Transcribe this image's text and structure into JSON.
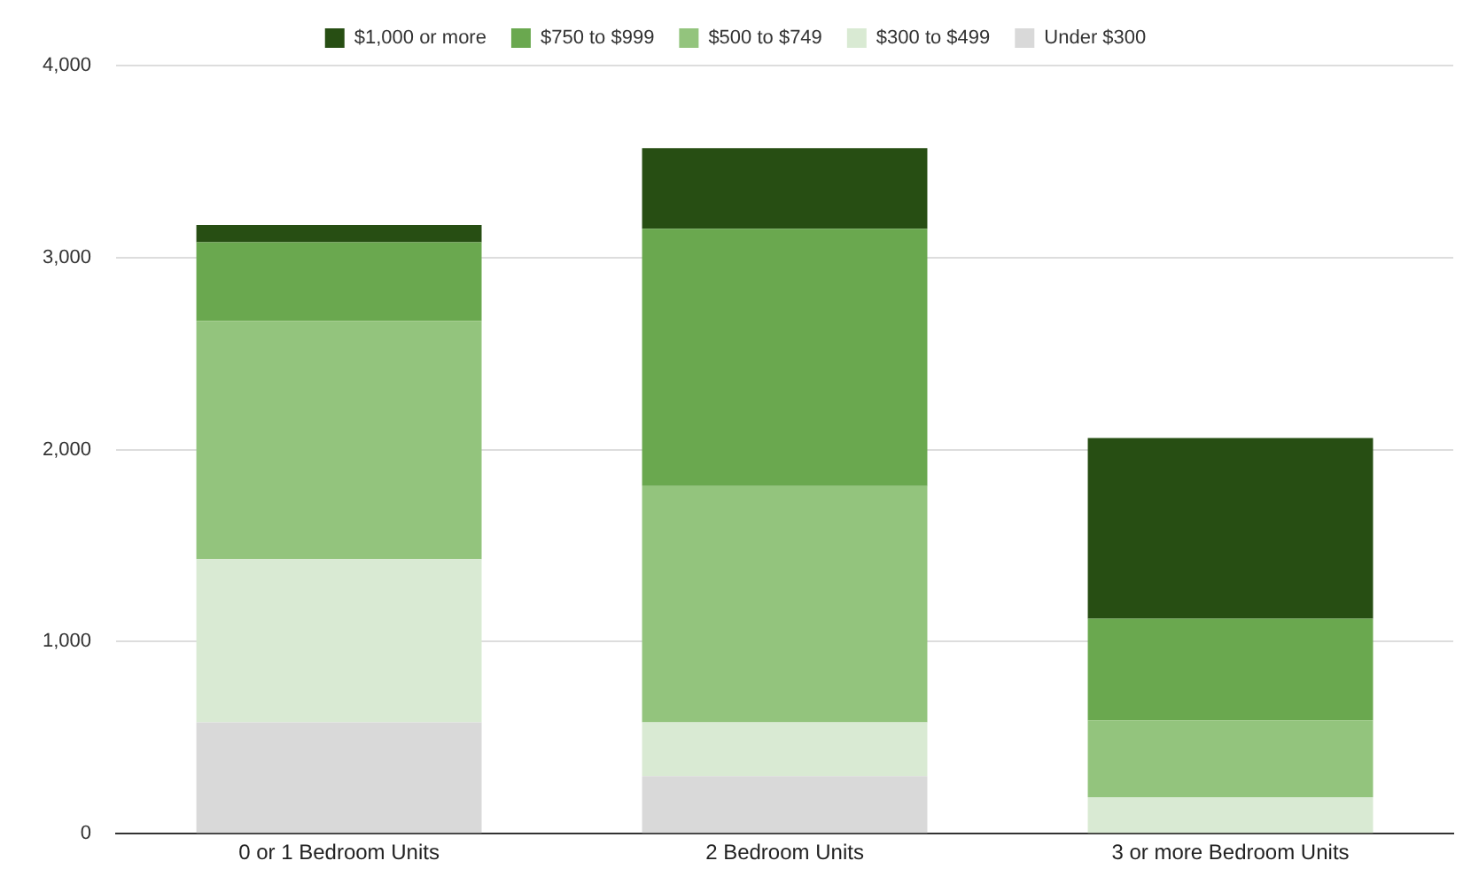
{
  "chart_data": {
    "type": "bar",
    "stacked": true,
    "categories": [
      "0 or 1 Bedroom Units",
      "2 Bedroom Units",
      "3 or more Bedroom Units"
    ],
    "series": [
      {
        "name": "Under $300",
        "color": "#d9d9d9",
        "values": [
          580,
          300,
          0
        ]
      },
      {
        "name": "$300 to $499",
        "color": "#d9ead3",
        "values": [
          850,
          280,
          190
        ]
      },
      {
        "name": "$500 to $749",
        "color": "#93c47d",
        "values": [
          1240,
          1230,
          400
        ]
      },
      {
        "name": "$750 to $999",
        "color": "#6aa84f",
        "values": [
          410,
          1340,
          530
        ]
      },
      {
        "name": "$1,000 or more",
        "color": "#274e13",
        "values": [
          90,
          420,
          940
        ]
      }
    ],
    "ylim": [
      0,
      4000
    ],
    "yticks": [
      {
        "value": 0,
        "label": "0"
      },
      {
        "value": 1000,
        "label": "1,000"
      },
      {
        "value": 2000,
        "label": "2,000"
      },
      {
        "value": 3000,
        "label": "3,000"
      },
      {
        "value": 4000,
        "label": "4,000"
      }
    ],
    "grid": "y",
    "legend": "top"
  }
}
